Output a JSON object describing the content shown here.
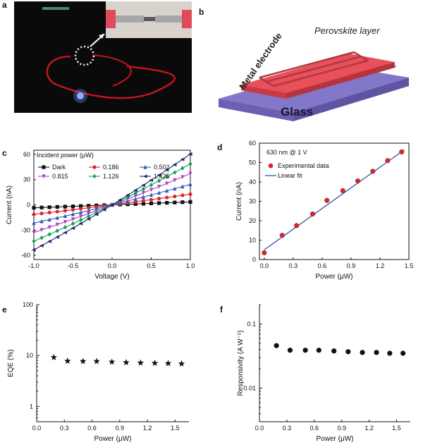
{
  "panel_labels": {
    "a": "a",
    "b": "b",
    "c": "c",
    "d": "d",
    "e": "e",
    "f": "f"
  },
  "schematic": {
    "perovskite_label": "Perovskite layer",
    "electrode_label": "Metal electrode",
    "glass_label": "Glass"
  },
  "colors": {
    "perovskite": "#e8505a",
    "glass": "#7f74c6",
    "electrode_strip": "#3aa0c8",
    "photo_bg": "#0a0a0a",
    "wire_red": "#c2141e",
    "d_marker": "#d9262c",
    "d_line": "#2a5aa0"
  },
  "chart_data": [
    {
      "id": "c",
      "type": "line",
      "xlabel": "Voltage (V)",
      "ylabel": "Current (nA)",
      "xlim": [
        -1.0,
        1.0
      ],
      "ylim": [
        -65,
        65
      ],
      "xticks": [
        "-1.0",
        "-0.5",
        "0.0",
        "0.5",
        "1.0"
      ],
      "yticks": [
        "-60",
        "-30",
        "0",
        "30",
        "60"
      ],
      "legend_title": "Incident power (μW)",
      "legend_position": "top-left",
      "x": [
        -1.0,
        -0.9,
        -0.8,
        -0.7,
        -0.6,
        -0.5,
        -0.4,
        -0.3,
        -0.2,
        -0.1,
        0.0,
        0.1,
        0.2,
        0.3,
        0.4,
        0.5,
        0.6,
        0.7,
        0.8,
        0.9,
        1.0
      ],
      "series": [
        {
          "name": "Dark",
          "color": "#111111",
          "marker": "square",
          "slope": 3.5,
          "asym": 0.0
        },
        {
          "name": "0.186",
          "color": "#e0242b",
          "marker": "circle",
          "slope": 12,
          "asym": 0.06
        },
        {
          "name": "0.502",
          "color": "#2a5ab8",
          "marker": "triangle-up",
          "slope": 23,
          "asym": 0.06
        },
        {
          "name": "0.815",
          "color": "#b040c8",
          "marker": "triangle-down",
          "slope": 35,
          "asym": 0.06
        },
        {
          "name": "1.126",
          "color": "#13a050",
          "marker": "diamond",
          "slope": 46,
          "asym": 0.06
        },
        {
          "name": "1.425",
          "color": "#1a2a6a",
          "marker": "triangle-left",
          "slope": 57,
          "asym": 0.06
        }
      ]
    },
    {
      "id": "d",
      "type": "scatter",
      "annotation": "630 nm @ 1 V",
      "xlabel": "Power (μW)",
      "ylabel": "Current (nA)",
      "xlim": [
        -0.05,
        1.5
      ],
      "ylim": [
        0,
        60
      ],
      "xticks": [
        "0.0",
        "0.3",
        "0.6",
        "0.9",
        "1.2",
        "1.5"
      ],
      "yticks": [
        "0",
        "10",
        "20",
        "30",
        "40",
        "50",
        "60"
      ],
      "legend": [
        "Experimental data",
        "Linear fit"
      ],
      "x": [
        0.0,
        0.186,
        0.335,
        0.502,
        0.65,
        0.815,
        0.97,
        1.126,
        1.28,
        1.425
      ],
      "y": [
        3.5,
        12.5,
        17.5,
        23.5,
        30.5,
        35.5,
        40.5,
        45.5,
        51.0,
        55.5
      ],
      "fit": {
        "x": [
          0.0,
          1.45
        ],
        "y": [
          5.0,
          56.5
        ]
      }
    },
    {
      "id": "e",
      "type": "scatter",
      "xlabel": "Power (μW)",
      "ylabel": "EQE (%)",
      "yscale": "log",
      "xlim": [
        0.0,
        1.65
      ],
      "ylim": [
        0.5,
        100
      ],
      "xticks": [
        "0.0",
        "0.3",
        "0.6",
        "0.9",
        "1.2",
        "1.5"
      ],
      "yticks": [
        "1",
        "10",
        "100"
      ],
      "x": [
        0.186,
        0.335,
        0.502,
        0.65,
        0.815,
        0.97,
        1.126,
        1.28,
        1.425,
        1.57
      ],
      "y": [
        9.2,
        7.8,
        7.7,
        7.7,
        7.5,
        7.3,
        7.2,
        7.1,
        7.0,
        6.9
      ]
    },
    {
      "id": "f",
      "type": "scatter",
      "xlabel": "Power (μW)",
      "ylabel": "Responsivity (A W⁻¹)",
      "yscale": "log",
      "xlim": [
        0.0,
        1.65
      ],
      "ylim": [
        0.003,
        0.2
      ],
      "xticks": [
        "0.0",
        "0.3",
        "0.6",
        "0.9",
        "1.2",
        "1.5"
      ],
      "yticks": [
        "0.01",
        "0.1"
      ],
      "x": [
        0.186,
        0.335,
        0.502,
        0.65,
        0.815,
        0.97,
        1.126,
        1.28,
        1.425,
        1.57
      ],
      "y": [
        0.046,
        0.039,
        0.039,
        0.039,
        0.038,
        0.037,
        0.036,
        0.036,
        0.035,
        0.035
      ]
    }
  ]
}
